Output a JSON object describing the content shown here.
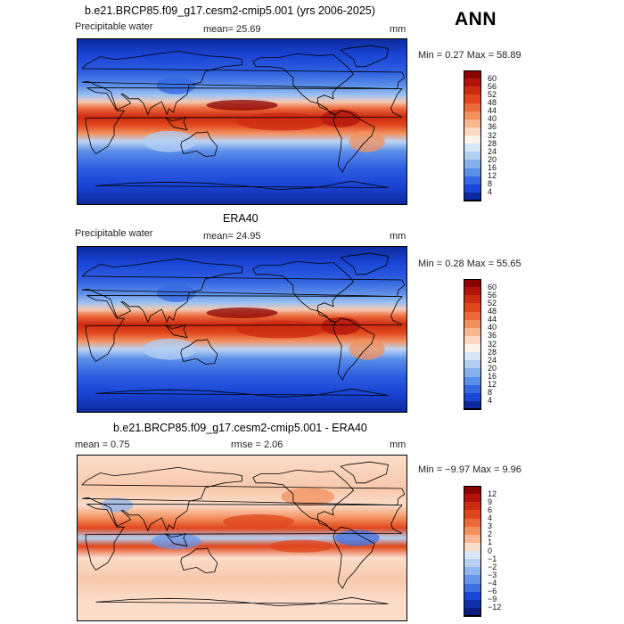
{
  "season": "ANN",
  "panels": [
    {
      "title": "b.e21.BRCP85.f09_g17.cesm2-cmip5.001 (yrs 2006-2025)",
      "left_label": "Precipitable water",
      "mid_label": "mean=  25.69",
      "right_label": "mm",
      "minmax": "Min =   0.27 Max =  58.89",
      "palette": "abs",
      "colorbar": {
        "labels": [
          "60",
          "56",
          "52",
          "48",
          "44",
          "40",
          "36",
          "32",
          "28",
          "24",
          "20",
          "16",
          "12",
          "8",
          "4"
        ],
        "colors": [
          "#8b0000",
          "#b0140c",
          "#cc2a12",
          "#e0461c",
          "#ec6a3a",
          "#f2905e",
          "#f8b692",
          "#fcd8c2",
          "#fbf2ea",
          "#d7e6f9",
          "#b2cef3",
          "#85b0ee",
          "#5b8ee8",
          "#3368e2",
          "#1a45d6",
          "#0c2a9e"
        ]
      }
    },
    {
      "title": "ERA40",
      "left_label": "Precipitable water",
      "mid_label": "mean=  24.95",
      "right_label": "mm",
      "minmax": "Min =   0.28 Max =  55.65",
      "palette": "abs",
      "colorbar": {
        "labels": [
          "60",
          "56",
          "52",
          "48",
          "44",
          "40",
          "36",
          "32",
          "28",
          "24",
          "20",
          "16",
          "12",
          "8",
          "4"
        ],
        "colors": [
          "#8b0000",
          "#b0140c",
          "#cc2a12",
          "#e0461c",
          "#ec6a3a",
          "#f2905e",
          "#f8b692",
          "#fcd8c2",
          "#fbf2ea",
          "#d7e6f9",
          "#b2cef3",
          "#85b0ee",
          "#5b8ee8",
          "#3368e2",
          "#1a45d6",
          "#0c2a9e"
        ]
      }
    },
    {
      "title": "b.e21.BRCP85.f09_g17.cesm2-cmip5.001 - ERA40",
      "left_label": "mean =   0.75",
      "mid_label": "rmse =   2.06",
      "right_label": "mm",
      "minmax": "Min =  −9.97 Max =   9.96",
      "palette": "diff",
      "colorbar": {
        "labels": [
          "12",
          "9",
          "6",
          "4",
          "3",
          "2",
          "1",
          "0",
          "−1",
          "−2",
          "−3",
          "−4",
          "−6",
          "−9",
          "−12"
        ],
        "colors": [
          "#8b0000",
          "#b0140c",
          "#cc2a12",
          "#e0461c",
          "#ec6a3a",
          "#f2905e",
          "#f8b692",
          "#fbddca",
          "#d9e7f9",
          "#b6d0f4",
          "#8fb6ef",
          "#6896e9",
          "#3f70e2",
          "#1a45d6",
          "#0f2fa8",
          "#0a1c80"
        ]
      }
    }
  ],
  "colors": {
    "map_border": "#000000",
    "coast": "#000000"
  }
}
